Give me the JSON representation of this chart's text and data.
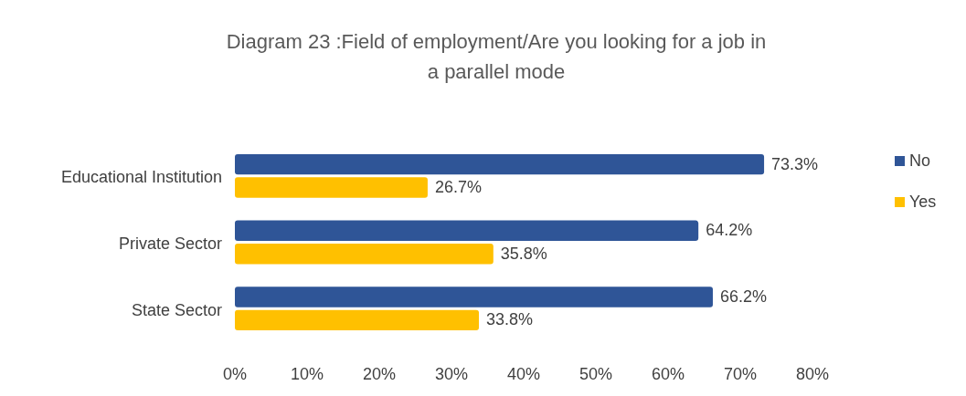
{
  "chart_data": {
    "type": "bar",
    "orientation": "horizontal",
    "title": "Diagram 23 :Field of employment/Are you looking for a job in a parallel mode",
    "categories": [
      "Educational Institution",
      "Private Sector",
      "State Sector"
    ],
    "series": [
      {
        "name": "No",
        "color": "#2f5597",
        "values": [
          73.3,
          64.2,
          66.2
        ],
        "value_labels": [
          "73.3%",
          "64.2%",
          "66.2%"
        ]
      },
      {
        "name": "Yes",
        "color": "#ffc000",
        "values": [
          26.7,
          35.8,
          33.8
        ],
        "value_labels": [
          "26.7%",
          "35.8%",
          "33.8%"
        ]
      }
    ],
    "xlim": [
      0,
      80
    ],
    "xticks": [
      {
        "value": 0,
        "label": "0%"
      },
      {
        "value": 10,
        "label": "10%"
      },
      {
        "value": 20,
        "label": "20%"
      },
      {
        "value": 30,
        "label": "30%"
      },
      {
        "value": 40,
        "label": "40%"
      },
      {
        "value": 50,
        "label": "50%"
      },
      {
        "value": 60,
        "label": "60%"
      },
      {
        "value": 70,
        "label": "70%"
      },
      {
        "value": 80,
        "label": "80%"
      }
    ],
    "grid": false,
    "legend": "right"
  }
}
